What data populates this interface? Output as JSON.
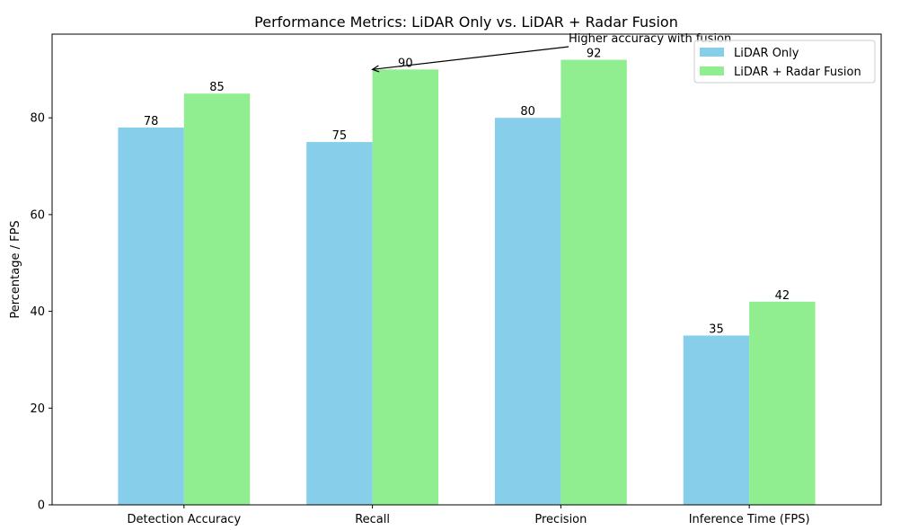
{
  "chart_data": {
    "type": "bar",
    "title": "Performance Metrics: LiDAR Only vs. LiDAR + Radar Fusion",
    "xlabel": "",
    "ylabel": "Percentage / FPS",
    "categories": [
      "Detection Accuracy",
      "Recall",
      "Precision",
      "Inference Time (FPS)"
    ],
    "series": [
      {
        "name": "LiDAR Only",
        "values": [
          78,
          75,
          80,
          35
        ],
        "color": "#87ceeb"
      },
      {
        "name": "LiDAR + Radar Fusion",
        "values": [
          85,
          90,
          92,
          42
        ],
        "color": "#90ee90"
      }
    ],
    "ylim": [
      0,
      97.3
    ],
    "yticks": [
      0,
      20,
      40,
      60,
      80
    ],
    "grid": false,
    "legend_position": "top-right",
    "annotations": [
      {
        "text": "Higher accuracy with fusion",
        "target_category": "Recall",
        "target_series": "LiDAR + Radar Fusion",
        "target_value": 90
      }
    ]
  }
}
